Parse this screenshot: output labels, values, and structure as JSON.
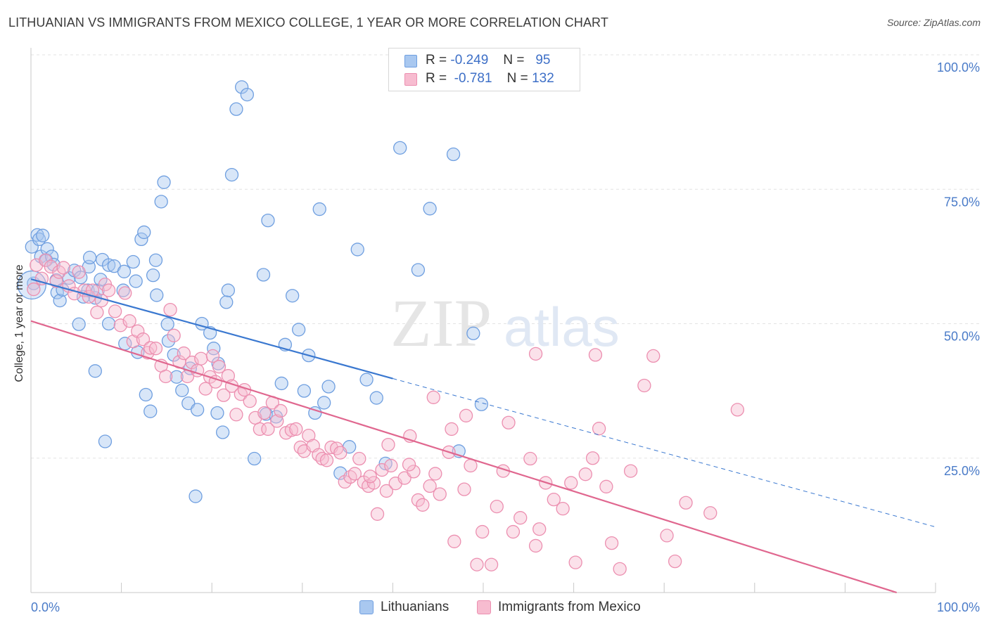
{
  "title": "LITHUANIAN VS IMMIGRANTS FROM MEXICO COLLEGE, 1 YEAR OR MORE CORRELATION CHART",
  "source": "Source: ZipAtlas.com",
  "watermark": {
    "zip": "ZIP",
    "atlas": "atlas"
  },
  "legend_top": [
    {
      "r_label": "R =",
      "r_value": "-0.249",
      "n_label": "N =",
      "n_value": "95"
    },
    {
      "r_label": "R =",
      "r_value": "-0.781",
      "n_label": "N =",
      "n_value": "132"
    }
  ],
  "legend_bottom": [
    "Lithuanians",
    "Immigrants from Mexico"
  ],
  "colors": {
    "blue_fill": "#a9c8f0",
    "blue_stroke": "#6f9fe0",
    "blue_line": "#3a78d0",
    "pink_fill": "#f7bcd0",
    "pink_stroke": "#ec8fb0",
    "pink_line": "#e0678f",
    "tick_color": "#4a7bc8",
    "grid": "#e3e3e3"
  },
  "chart_data": {
    "type": "scatter",
    "title": "LITHUANIAN VS IMMIGRANTS FROM MEXICO COLLEGE, 1 YEAR OR MORE CORRELATION CHART",
    "xlabel": "",
    "ylabel": "College, 1 year or more",
    "xlim": [
      0,
      100
    ],
    "ylim": [
      0,
      100
    ],
    "x_tick_labels": [
      "0.0%",
      "100.0%"
    ],
    "y_ticks": [
      25,
      50,
      75,
      100
    ],
    "y_tick_labels": [
      "25.0%",
      "50.0%",
      "75.0%",
      "100.0%"
    ],
    "grid": true,
    "legend_position": "bottom",
    "series": [
      {
        "name": "Lithuanians",
        "R": -0.249,
        "N": 95,
        "trend": {
          "x1": 0,
          "y1": 58.3,
          "x2": 40,
          "y2": 39.8,
          "dash_to_x": 100,
          "dash_to_y": 12.2
        },
        "points": [
          [
            0.1,
            64.3
          ],
          [
            0.3,
            57.5
          ],
          [
            0.7,
            66.5
          ],
          [
            0.9,
            65.7
          ],
          [
            1.3,
            66.4
          ],
          [
            1.1,
            62.5
          ],
          [
            1.8,
            63.9
          ],
          [
            1.7,
            61.8
          ],
          [
            2.3,
            62.5
          ],
          [
            2.5,
            61
          ],
          [
            2.8,
            58.1
          ],
          [
            2.9,
            55.8
          ],
          [
            3.2,
            54.3
          ],
          [
            3.5,
            56.3
          ],
          [
            4.2,
            58.5
          ],
          [
            4.8,
            59.9
          ],
          [
            5.5,
            58.6
          ],
          [
            5.8,
            55
          ],
          [
            6.3,
            56.2
          ],
          [
            6.4,
            60.6
          ],
          [
            7.1,
            54.8
          ],
          [
            7.4,
            56.2
          ],
          [
            7.7,
            58.2
          ],
          [
            7.9,
            61.9
          ],
          [
            8.6,
            60.9
          ],
          [
            9.2,
            60.7
          ],
          [
            10.2,
            56.2
          ],
          [
            10.3,
            59.7
          ],
          [
            11.3,
            61.5
          ],
          [
            11.6,
            57.9
          ],
          [
            12.2,
            65.7
          ],
          [
            12.5,
            67
          ],
          [
            13.5,
            59
          ],
          [
            13.8,
            61.8
          ],
          [
            13.9,
            55.3
          ],
          [
            14.4,
            72.7
          ],
          [
            14.7,
            76.3
          ],
          [
            15.1,
            49.9
          ],
          [
            15.2,
            46.8
          ],
          [
            15.8,
            44.2
          ],
          [
            16.1,
            40.1
          ],
          [
            16.7,
            37.6
          ],
          [
            17.4,
            35.2
          ],
          [
            17.6,
            41.7
          ],
          [
            18.4,
            34
          ],
          [
            18.9,
            50
          ],
          [
            19.8,
            48.3
          ],
          [
            20.2,
            45.4
          ],
          [
            20.6,
            33.4
          ],
          [
            21.2,
            29.8
          ],
          [
            21.6,
            54
          ],
          [
            21.8,
            56.2
          ],
          [
            22.2,
            77.7
          ],
          [
            22.7,
            89.9
          ],
          [
            23.3,
            94
          ],
          [
            23.9,
            92.6
          ],
          [
            24.7,
            24.9
          ],
          [
            25.7,
            59.1
          ],
          [
            26,
            33.2
          ],
          [
            26.2,
            69.2
          ],
          [
            27.1,
            32.7
          ],
          [
            27.7,
            38.9
          ],
          [
            28.1,
            46.1
          ],
          [
            28.9,
            55.2
          ],
          [
            29.6,
            48.9
          ],
          [
            30.2,
            37.5
          ],
          [
            30.7,
            44.1
          ],
          [
            31.4,
            33.4
          ],
          [
            31.9,
            71.3
          ],
          [
            32.4,
            35.3
          ],
          [
            32.9,
            38.3
          ],
          [
            34.2,
            22.2
          ],
          [
            35.2,
            27.1
          ],
          [
            36.1,
            63.8
          ],
          [
            37.1,
            39.6
          ],
          [
            38.2,
            36.2
          ],
          [
            39.2,
            24
          ],
          [
            40.8,
            82.7
          ],
          [
            42.8,
            60
          ],
          [
            44.1,
            71.4
          ],
          [
            46.7,
            81.5
          ],
          [
            47.3,
            26.3
          ],
          [
            48.9,
            48.2
          ],
          [
            49.8,
            35
          ],
          [
            6.5,
            62.3
          ],
          [
            5.3,
            49.9
          ],
          [
            7.1,
            41.2
          ],
          [
            8.2,
            28.1
          ],
          [
            8.6,
            50
          ],
          [
            10.4,
            46.3
          ],
          [
            11.8,
            44.7
          ],
          [
            12.7,
            36.8
          ],
          [
            13.2,
            33.7
          ],
          [
            18.2,
            17.9
          ],
          [
            20.7,
            42.6
          ]
        ]
      },
      {
        "name": "Immigrants from Mexico",
        "R": -0.781,
        "N": 132,
        "trend": {
          "x1": 0,
          "y1": 50.5,
          "x2": 95.7,
          "y2": 0
        },
        "points": [
          [
            0.3,
            56.4
          ],
          [
            0.6,
            60.9
          ],
          [
            1.2,
            58.4
          ],
          [
            1.6,
            61.8
          ],
          [
            2.2,
            60.6
          ],
          [
            2.8,
            57.9
          ],
          [
            3.1,
            59.6
          ],
          [
            3.6,
            60.4
          ],
          [
            4.2,
            57
          ],
          [
            4.8,
            55.6
          ],
          [
            5.3,
            59.6
          ],
          [
            5.9,
            56.2
          ],
          [
            6.4,
            55
          ],
          [
            6.8,
            56.2
          ],
          [
            7.3,
            52.1
          ],
          [
            7.8,
            54.3
          ],
          [
            8.2,
            57.3
          ],
          [
            8.6,
            56.2
          ],
          [
            9.3,
            52.3
          ],
          [
            9.9,
            49.7
          ],
          [
            10.4,
            55.7
          ],
          [
            10.9,
            50.5
          ],
          [
            11.3,
            46.7
          ],
          [
            11.8,
            48.6
          ],
          [
            12.4,
            47.1
          ],
          [
            12.9,
            44.6
          ],
          [
            13.2,
            45.5
          ],
          [
            13.8,
            45.4
          ],
          [
            14.4,
            42.2
          ],
          [
            14.9,
            40.2
          ],
          [
            15.4,
            52.6
          ],
          [
            15.8,
            47.8
          ],
          [
            16.4,
            42.9
          ],
          [
            16.9,
            44.5
          ],
          [
            17.3,
            40.2
          ],
          [
            17.8,
            42.8
          ],
          [
            18.4,
            41.3
          ],
          [
            18.8,
            43.5
          ],
          [
            19.3,
            37.9
          ],
          [
            19.8,
            40.1
          ],
          [
            20.1,
            44
          ],
          [
            20.4,
            39.2
          ],
          [
            20.8,
            42
          ],
          [
            21.3,
            36.7
          ],
          [
            21.8,
            40.3
          ],
          [
            22.2,
            38.4
          ],
          [
            22.7,
            33.1
          ],
          [
            23.2,
            36.9
          ],
          [
            23.6,
            37.7
          ],
          [
            24.2,
            35.6
          ],
          [
            24.8,
            32.5
          ],
          [
            25.3,
            30.4
          ],
          [
            25.8,
            33.4
          ],
          [
            26.2,
            30.4
          ],
          [
            26.7,
            35.3
          ],
          [
            27.2,
            31.9
          ],
          [
            27.6,
            33.8
          ],
          [
            28.2,
            29.7
          ],
          [
            28.8,
            30.2
          ],
          [
            29.3,
            30.4
          ],
          [
            29.8,
            27
          ],
          [
            30.2,
            26.3
          ],
          [
            30.7,
            29.2
          ],
          [
            31.2,
            27.3
          ],
          [
            31.8,
            25.6
          ],
          [
            32.2,
            24.9
          ],
          [
            32.7,
            24.6
          ],
          [
            33.2,
            27
          ],
          [
            33.8,
            26.8
          ],
          [
            34.2,
            26
          ],
          [
            34.7,
            20.6
          ],
          [
            35.3,
            21.5
          ],
          [
            35.8,
            22.1
          ],
          [
            36.3,
            24.9
          ],
          [
            36.8,
            20.5
          ],
          [
            37.3,
            19.8
          ],
          [
            37.9,
            20.4
          ],
          [
            38.3,
            14.6
          ],
          [
            38.8,
            22.8
          ],
          [
            39.3,
            18.9
          ],
          [
            39.8,
            23.6
          ],
          [
            40.3,
            20.3
          ],
          [
            41.3,
            21.3
          ],
          [
            41.9,
            29.1
          ],
          [
            42.3,
            22.5
          ],
          [
            42.8,
            17.2
          ],
          [
            43.3,
            16.3
          ],
          [
            44.1,
            19.8
          ],
          [
            44.7,
            22.1
          ],
          [
            45.2,
            18.3
          ],
          [
            46.2,
            26.1
          ],
          [
            46.8,
            9.5
          ],
          [
            47.9,
            19.2
          ],
          [
            48.6,
            23.6
          ],
          [
            49.3,
            5.2
          ],
          [
            49.9,
            11.3
          ],
          [
            50.9,
            5.2
          ],
          [
            51.5,
            16
          ],
          [
            52.2,
            22.6
          ],
          [
            52.8,
            31.6
          ],
          [
            53.3,
            11.3
          ],
          [
            54.1,
            13.9
          ],
          [
            55.2,
            24.9
          ],
          [
            55.8,
            8.7
          ],
          [
            56.2,
            11.8
          ],
          [
            56.9,
            20.4
          ],
          [
            57.8,
            17.3
          ],
          [
            58.8,
            15.6
          ],
          [
            59.7,
            20.4
          ],
          [
            60.2,
            5.6
          ],
          [
            61.3,
            22
          ],
          [
            62.1,
            25
          ],
          [
            62.8,
            30.5
          ],
          [
            63.6,
            19.7
          ],
          [
            64.2,
            9.2
          ],
          [
            65.1,
            4.4
          ],
          [
            66.3,
            22.6
          ],
          [
            67.8,
            38.5
          ],
          [
            68.8,
            44
          ],
          [
            70.3,
            10.6
          ],
          [
            71.2,
            5.8
          ],
          [
            72.4,
            16.7
          ],
          [
            75.1,
            14.8
          ],
          [
            78.1,
            34
          ],
          [
            62.4,
            44.2
          ],
          [
            55.8,
            44.4
          ],
          [
            48.1,
            32.9
          ],
          [
            46.5,
            30.4
          ],
          [
            44.5,
            36.3
          ],
          [
            41.8,
            23.8
          ],
          [
            39.5,
            27.5
          ],
          [
            37.5,
            21.6
          ]
        ]
      }
    ]
  }
}
